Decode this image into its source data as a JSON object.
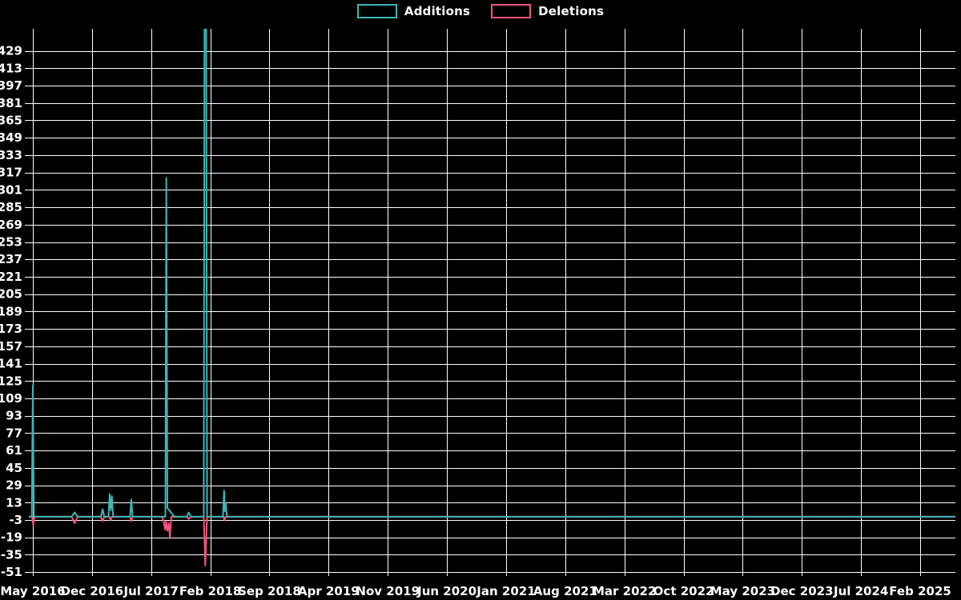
{
  "legend": {
    "items": [
      {
        "label": "Additions",
        "color": "#3db6b6"
      },
      {
        "label": "Deletions",
        "color": "#f25579"
      }
    ]
  },
  "chart_data": {
    "type": "line",
    "title": "",
    "background": "#000000",
    "grid_color": "#ffffff",
    "text_color": "#ffffff",
    "x_axis": {
      "unit": "months since May 2016",
      "tick_labels": [
        "May 2016",
        "Dec 2016",
        "Jul 2017",
        "Feb 2018",
        "Sep 2018",
        "Apr 2019",
        "Nov 2019",
        "Jun 2020",
        "Jan 2021",
        "Aug 2021",
        "Mar 2022",
        "Oct 2022",
        "May 2023",
        "Dec 2023",
        "Jul 2024",
        "Feb 2025"
      ],
      "tick_month_offsets": [
        0,
        7,
        14,
        21,
        28,
        35,
        42,
        49,
        56,
        63,
        70,
        77,
        84,
        91,
        98,
        105
      ]
    },
    "y_axis": {
      "tick_labels": [
        429,
        413,
        397,
        381,
        365,
        349,
        333,
        317,
        301,
        285,
        269,
        253,
        237,
        221,
        205,
        189,
        173,
        157,
        141,
        125,
        109,
        93,
        77,
        61,
        45,
        29,
        13,
        -3,
        -19,
        -35,
        -51
      ],
      "min": -51,
      "max": 445,
      "step": 16
    },
    "grid": true,
    "legend_position": "top-center",
    "series": [
      {
        "name": "Additions",
        "color": "#3db6b6",
        "points": [
          [
            -0.47,
            0
          ],
          [
            -0.12,
            0
          ],
          [
            0,
            121
          ],
          [
            0.12,
            0
          ],
          [
            4.6,
            0
          ],
          [
            4.95,
            4
          ],
          [
            5.3,
            0
          ],
          [
            8.05,
            0
          ],
          [
            8.25,
            7
          ],
          [
            8.45,
            0
          ],
          [
            8.95,
            0
          ],
          [
            9.1,
            21
          ],
          [
            9.22,
            6
          ],
          [
            9.35,
            19
          ],
          [
            9.5,
            0
          ],
          [
            11.5,
            0
          ],
          [
            11.65,
            16
          ],
          [
            11.8,
            0
          ],
          [
            15.68,
            0
          ],
          [
            15.8,
            312
          ],
          [
            15.92,
            8
          ],
          [
            16.15,
            6
          ],
          [
            16.45,
            3
          ],
          [
            16.75,
            0
          ],
          [
            18.2,
            0
          ],
          [
            18.45,
            4
          ],
          [
            18.7,
            0
          ],
          [
            20.22,
            0
          ],
          [
            20.33,
            520
          ],
          [
            20.5,
            520
          ],
          [
            20.62,
            0
          ],
          [
            22.5,
            0
          ],
          [
            22.63,
            24
          ],
          [
            22.73,
            5
          ],
          [
            22.83,
            12
          ],
          [
            22.97,
            0
          ],
          [
            109.16,
            0
          ]
        ]
      },
      {
        "name": "Deletions",
        "color": "#f25579",
        "points": [
          [
            -0.47,
            0
          ],
          [
            -0.08,
            0
          ],
          [
            0.05,
            -8
          ],
          [
            0.18,
            0
          ],
          [
            4.6,
            0
          ],
          [
            4.95,
            -6
          ],
          [
            5.3,
            0
          ],
          [
            8.05,
            0
          ],
          [
            8.25,
            -4
          ],
          [
            8.45,
            0
          ],
          [
            9.05,
            0
          ],
          [
            9.2,
            -3
          ],
          [
            9.35,
            0
          ],
          [
            11.5,
            0
          ],
          [
            11.65,
            -4
          ],
          [
            11.8,
            0
          ],
          [
            15.3,
            0
          ],
          [
            15.5,
            -5
          ],
          [
            15.65,
            -12
          ],
          [
            15.78,
            -4
          ],
          [
            15.92,
            -13
          ],
          [
            16.08,
            -6
          ],
          [
            16.22,
            -19
          ],
          [
            16.38,
            0
          ],
          [
            18.2,
            0
          ],
          [
            18.45,
            -2
          ],
          [
            18.7,
            0
          ],
          [
            20.22,
            0
          ],
          [
            20.32,
            -21
          ],
          [
            20.4,
            -45
          ],
          [
            20.52,
            -21
          ],
          [
            20.62,
            0
          ],
          [
            22.55,
            0
          ],
          [
            22.67,
            -3
          ],
          [
            22.8,
            0
          ],
          [
            109.16,
            0
          ]
        ]
      }
    ]
  }
}
